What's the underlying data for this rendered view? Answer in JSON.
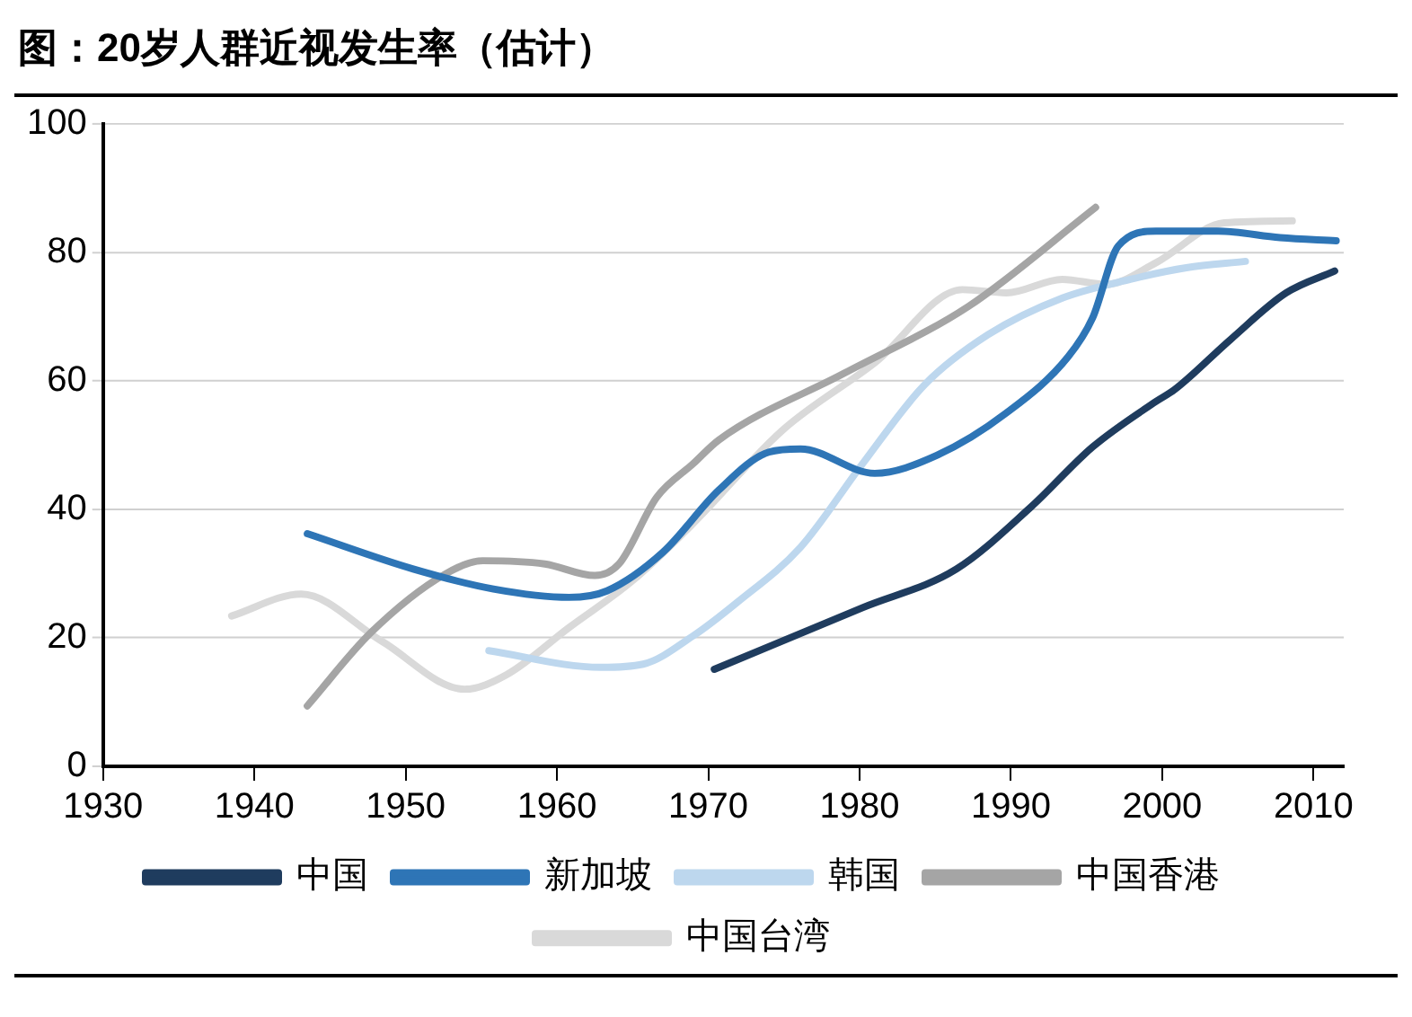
{
  "chart_data": {
    "type": "line",
    "title": "图：20岁人群近视发生率（估计）",
    "xlim": [
      1930,
      2012
    ],
    "xticks": [
      1930,
      1940,
      1950,
      1960,
      1970,
      1980,
      1990,
      2000,
      2010
    ],
    "ylim": [
      0,
      100
    ],
    "yticks": [
      0,
      20,
      40,
      60,
      80,
      100
    ],
    "grid": "y",
    "legend": "bottom",
    "marker": "none",
    "line_style": "solid",
    "series": [
      {
        "name": "中国",
        "color": "#1f3c5e",
        "x": [
          1970.4,
          1980.2,
          1986.4,
          1991.3,
          1995.4,
          1999.6,
          2000.8,
          2004.5,
          2008.2,
          2011.4
        ],
        "values": [
          15.1,
          24.7,
          30.7,
          40.3,
          49.7,
          56.8,
          58.6,
          66.4,
          73.7,
          77.1
        ]
      },
      {
        "name": "新加坡",
        "color": "#2e75b6",
        "x": [
          1943.5,
          1950.5,
          1955.8,
          1960.8,
          1963.3,
          1967,
          1970.7,
          1974,
          1976.1,
          1981,
          1985.1,
          1989.7,
          1993.8,
          1995.4,
          1997.1,
          1999.6,
          2003.7,
          2007.8,
          2011.5
        ],
        "values": [
          36.2,
          30.7,
          27.6,
          26.3,
          27.3,
          33.3,
          43,
          48.9,
          49.4,
          45.6,
          48.4,
          55,
          63.8,
          69.8,
          81,
          83.3,
          83.3,
          82.3,
          81.8
        ]
      },
      {
        "name": "韩国",
        "color": "#bdd7ee",
        "x": [
          1955.5,
          1962.9,
          1965.7,
          1969,
          1971.9,
          1976.1,
          1980.2,
          1984.3,
          1988.5,
          1993.4,
          1997.9,
          2001.6,
          2005.5
        ],
        "values": [
          18,
          15.4,
          15.9,
          20.3,
          25.5,
          34.1,
          47.1,
          59.4,
          67.2,
          72.9,
          75.8,
          77.6,
          78.6
        ]
      },
      {
        "name": "中国香港",
        "color": "#a5a5a5",
        "x": [
          1943.5,
          1947.7,
          1952.6,
          1955.1,
          1959.2,
          1962.5,
          1964.1,
          1966.6,
          1969,
          1970.7,
          1979,
          1987.2,
          1995.6
        ],
        "values": [
          9.4,
          20.8,
          29.9,
          32,
          31.5,
          29.7,
          31.5,
          41.9,
          47.1,
          50.8,
          61.2,
          71.6,
          87
        ]
      },
      {
        "name": "中国台湾",
        "color": "#d9d9d9",
        "x": [
          1938.5,
          1943.1,
          1948.4,
          1953.9,
          1956.7,
          1960.8,
          1965,
          1969,
          1974.9,
          1981,
          1986.8,
          1989.7,
          1993.4,
          1996.3,
          1999.6,
          2004.1,
          2008.6
        ],
        "values": [
          23.4,
          26.8,
          19.5,
          12,
          14.3,
          21.6,
          28.9,
          37.8,
          52.3,
          62.8,
          74.2,
          73.7,
          75.8,
          75,
          78.4,
          84.6,
          84.9
        ]
      }
    ]
  }
}
